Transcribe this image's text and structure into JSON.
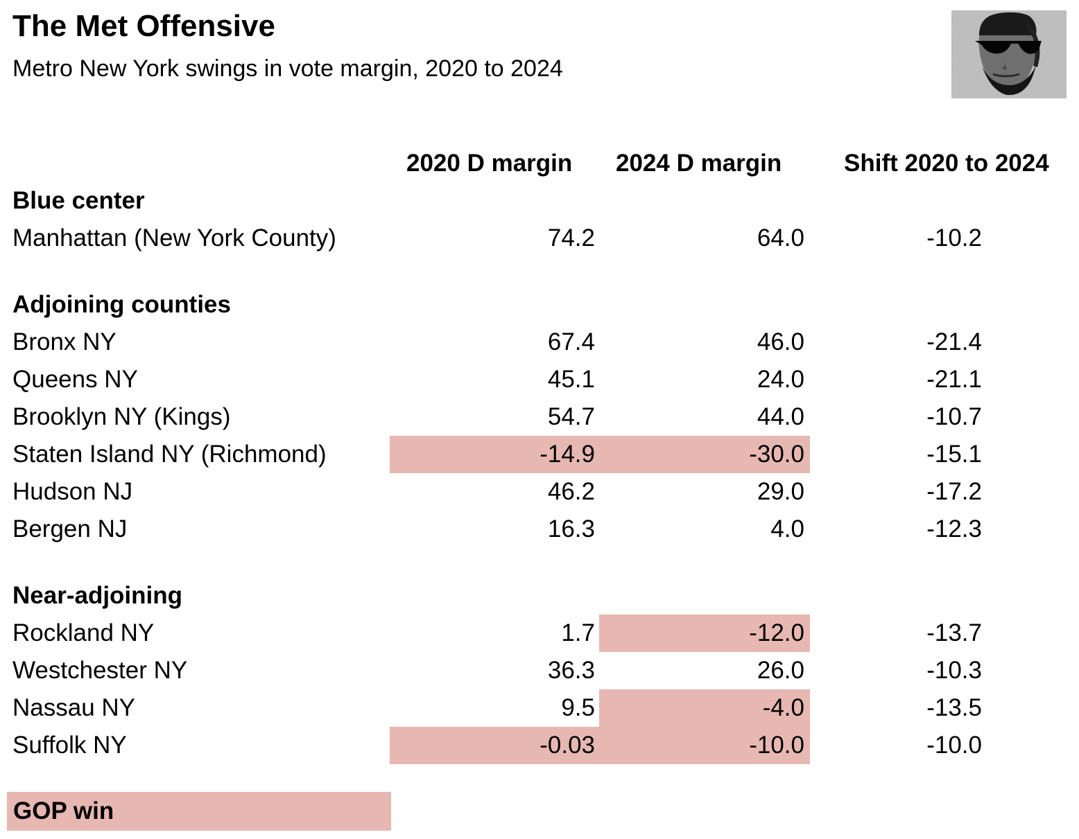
{
  "chart_data": {
    "type": "table",
    "title": "The Met Offensive",
    "subtitle": "Metro New York swings in vote margin, 2020 to 2024",
    "columns": [
      "2020 D margin",
      "2024 D margin",
      "Shift 2020 to 2024"
    ],
    "highlight_color": "#e6b8b1",
    "legend": "GOP win",
    "sections": [
      {
        "name": "Blue center",
        "rows": [
          {
            "county": "Manhattan (New York County)",
            "d2020": "74.2",
            "d2024": "64.0",
            "shift": "-10.2",
            "gop2020": false,
            "gop2024": false
          }
        ]
      },
      {
        "name": "Adjoining counties",
        "rows": [
          {
            "county": "Bronx NY",
            "d2020": "67.4",
            "d2024": "46.0",
            "shift": "-21.4",
            "gop2020": false,
            "gop2024": false
          },
          {
            "county": "Queens NY",
            "d2020": "45.1",
            "d2024": "24.0",
            "shift": "-21.1",
            "gop2020": false,
            "gop2024": false
          },
          {
            "county": "Brooklyn NY (Kings)",
            "d2020": "54.7",
            "d2024": "44.0",
            "shift": "-10.7",
            "gop2020": false,
            "gop2024": false
          },
          {
            "county": "Staten Island NY (Richmond)",
            "d2020": "-14.9",
            "d2024": "-30.0",
            "shift": "-15.1",
            "gop2020": true,
            "gop2024": true
          },
          {
            "county": "Hudson NJ",
            "d2020": "46.2",
            "d2024": "29.0",
            "shift": "-17.2",
            "gop2020": false,
            "gop2024": false
          },
          {
            "county": "Bergen NJ",
            "d2020": "16.3",
            "d2024": "4.0",
            "shift": "-12.3",
            "gop2020": false,
            "gop2024": false
          }
        ]
      },
      {
        "name": "Near-adjoining",
        "rows": [
          {
            "county": "Rockland NY",
            "d2020": "1.7",
            "d2024": "-12.0",
            "shift": "-13.7",
            "gop2020": false,
            "gop2024": true
          },
          {
            "county": "Westchester NY",
            "d2020": "36.3",
            "d2024": "26.0",
            "shift": "-10.3",
            "gop2020": false,
            "gop2024": false
          },
          {
            "county": "Nassau NY",
            "d2020": "9.5",
            "d2024": "-4.0",
            "shift": "-13.5",
            "gop2020": false,
            "gop2024": true
          },
          {
            "county": "Suffolk NY",
            "d2020": "-0.03",
            "d2024": "-10.0",
            "shift": "-10.0",
            "gop2020": true,
            "gop2024": true
          }
        ]
      }
    ]
  },
  "logo": {
    "icon": "lincoln-sunglasses-portrait-icon"
  }
}
